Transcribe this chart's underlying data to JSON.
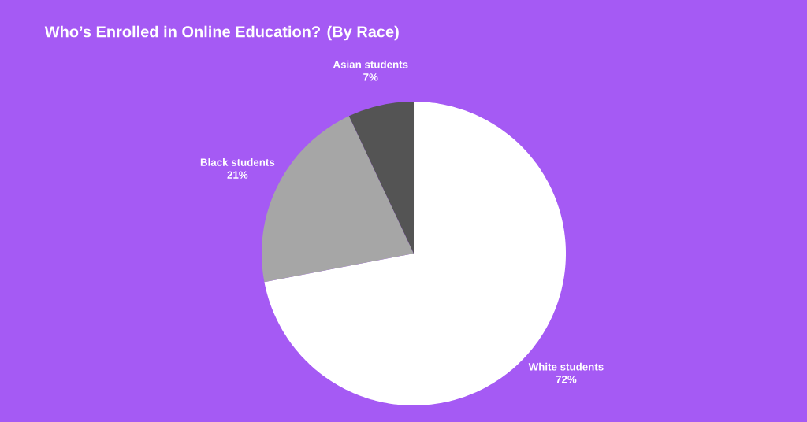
{
  "chart_data": {
    "type": "pie",
    "title": "Who’s Enrolled in Online Education? (By Race)",
    "categories": [
      "White students",
      "Black students",
      "Asian students"
    ],
    "values": [
      72,
      21,
      7
    ],
    "value_labels": [
      "72%",
      "21%",
      "7%"
    ],
    "colors": [
      "#ffffff",
      "#a6a6a6",
      "#545454"
    ]
  }
}
